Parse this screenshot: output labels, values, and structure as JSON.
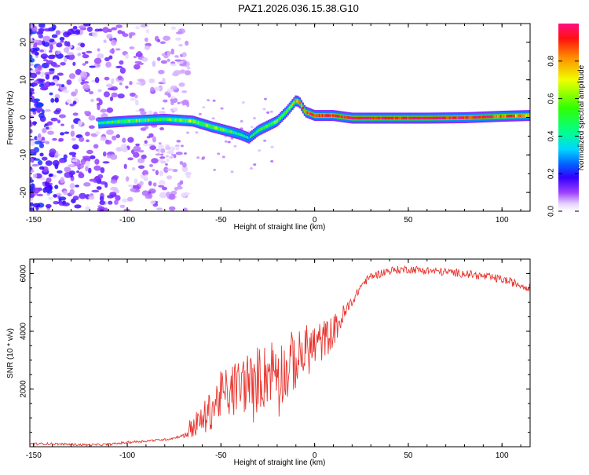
{
  "figure_title": "PAZ1.2026.036.15.38.G10",
  "chart_data": [
    {
      "type": "heatmap",
      "title": "PAZ1.2026.036.15.38.G10",
      "xlabel": "Height of straight line (km)",
      "ylabel": "Frequency (Hz)",
      "xlim": [
        -152,
        115
      ],
      "ylim": [
        -25,
        25
      ],
      "xticks": [
        -150,
        -100,
        -50,
        0,
        50,
        100
      ],
      "xtick_labels": [
        "-150",
        "-100",
        "-50",
        "0",
        "50",
        "100"
      ],
      "yticks": [
        -20,
        -10,
        0,
        10,
        20
      ],
      "ytick_labels": [
        "-20",
        "-10",
        "0",
        "10",
        "20"
      ],
      "colorbar": {
        "label": "Normalized spectral amplitude",
        "range": [
          0,
          1
        ],
        "ticks": [
          0.0,
          0.2,
          0.4,
          0.6,
          0.8
        ],
        "tick_labels": [
          "0.0",
          "0.2",
          "0.4",
          "0.6",
          "0.8"
        ]
      },
      "ridge": {
        "x": [
          -115,
          -100,
          -80,
          -65,
          -55,
          -45,
          -40,
          -35,
          -30,
          -20,
          -15,
          -10,
          -8,
          -5,
          0,
          10,
          20,
          40,
          60,
          80,
          100,
          115
        ],
        "y": [
          -1.5,
          -1.0,
          -0.5,
          -1.0,
          -2.5,
          -3.8,
          -4.5,
          -5.5,
          -3.5,
          -1.0,
          1.5,
          4.5,
          4.0,
          1.5,
          0.5,
          0.5,
          -0.2,
          -0.2,
          -0.2,
          -0.1,
          0.3,
          0.5
        ],
        "amplitude": [
          0.45,
          0.55,
          0.5,
          0.6,
          0.6,
          0.5,
          0.45,
          0.4,
          0.5,
          0.55,
          0.6,
          0.75,
          0.8,
          0.9,
          0.95,
          0.95,
          0.98,
          0.98,
          0.98,
          0.98,
          0.9,
          0.75
        ]
      }
    },
    {
      "type": "line",
      "xlabel": "Height of straight line (km)",
      "ylabel": "SNR (10 * v/v)",
      "xlim": [
        -152,
        115
      ],
      "ylim": [
        0,
        6500
      ],
      "xticks": [
        -150,
        -100,
        -50,
        0,
        50,
        100
      ],
      "xtick_labels": [
        "-150",
        "-100",
        "-50",
        "0",
        "50",
        "100"
      ],
      "yticks": [
        2000,
        4000,
        6000
      ],
      "ytick_labels": [
        "2000",
        "4000",
        "6000"
      ],
      "series": [
        {
          "name": "SNR",
          "color": "#e8352e",
          "x": [
            -152,
            -140,
            -130,
            -120,
            -110,
            -100,
            -90,
            -80,
            -75,
            -70,
            -65,
            -60,
            -55,
            -50,
            -45,
            -40,
            -35,
            -32,
            -30,
            -28,
            -25,
            -20,
            -15,
            -12,
            -10,
            -5,
            0,
            5,
            10,
            15,
            20,
            25,
            30,
            35,
            40,
            50,
            60,
            70,
            80,
            90,
            100,
            110,
            115
          ],
          "y": [
            100,
            100,
            80,
            60,
            80,
            150,
            200,
            250,
            300,
            400,
            700,
            900,
            1300,
            1800,
            1900,
            2100,
            2300,
            1800,
            2600,
            2300,
            2600,
            2800,
            2500,
            3000,
            2900,
            3300,
            3500,
            3700,
            4000,
            4500,
            5000,
            5600,
            5900,
            6000,
            6100,
            6150,
            6100,
            6050,
            6000,
            5900,
            5800,
            5600,
            5500
          ]
        }
      ]
    }
  ]
}
